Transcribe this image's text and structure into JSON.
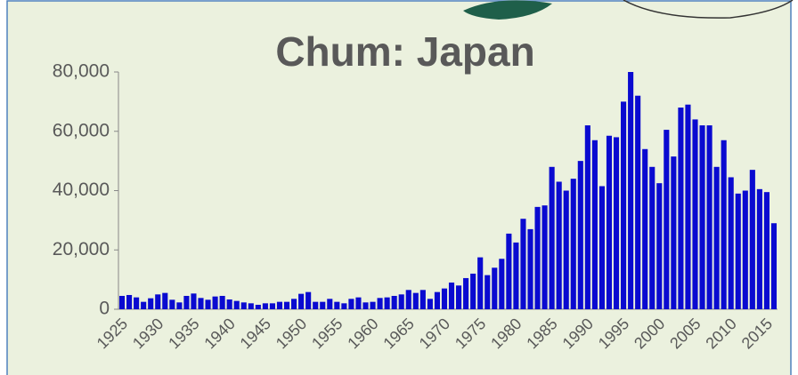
{
  "chart_data": {
    "type": "bar",
    "title": "Chum: Japan",
    "categories": [
      "1925",
      null,
      null,
      null,
      null,
      "1930",
      null,
      null,
      null,
      null,
      "1935",
      null,
      null,
      null,
      null,
      "1940",
      null,
      null,
      null,
      null,
      "1945",
      null,
      null,
      null,
      null,
      "1950",
      null,
      null,
      null,
      null,
      "1955",
      null,
      null,
      null,
      null,
      "1960",
      null,
      null,
      null,
      null,
      "1965",
      null,
      null,
      null,
      null,
      "1970",
      null,
      null,
      null,
      null,
      "1975",
      null,
      null,
      null,
      null,
      "1980",
      null,
      null,
      null,
      null,
      "1985",
      null,
      null,
      null,
      null,
      "1990",
      null,
      null,
      null,
      null,
      "1995",
      null,
      null,
      null,
      null,
      "2000",
      null,
      null,
      null,
      null,
      "2005",
      null,
      null,
      null,
      null,
      "2010",
      null,
      null,
      null,
      null,
      "2015",
      null
    ],
    "values": [
      4500,
      4800,
      4000,
      2500,
      3700,
      5000,
      5500,
      3200,
      2300,
      4500,
      5300,
      3800,
      3200,
      4300,
      4500,
      3300,
      2800,
      2300,
      2000,
      1500,
      2000,
      2000,
      2500,
      2500,
      3500,
      5200,
      5800,
      2500,
      2500,
      3500,
      2500,
      2000,
      3500,
      4000,
      2300,
      2500,
      3800,
      4000,
      4500,
      5000,
      6500,
      5500,
      6500,
      3500,
      5800,
      7000,
      9000,
      8000,
      10500,
      12000,
      17500,
      11500,
      14000,
      17000,
      25500,
      22500,
      30500,
      27000,
      34500,
      35000,
      48000,
      43000,
      40000,
      44000,
      50000,
      62000,
      57000,
      41500,
      58500,
      58000,
      70000,
      80000,
      72000,
      54000,
      48000,
      42500,
      60500,
      51500,
      68000,
      69000,
      64000,
      62000,
      62000,
      48000,
      57000,
      44500,
      39000,
      40000,
      47000,
      40500,
      39500,
      29000
    ],
    "color": "#0a0ad0",
    "ylim": [
      0,
      80000
    ],
    "yticks": [
      0,
      {
        "value": 20000,
        "label": "20,000"
      },
      {
        "value": 40000,
        "label": "40,000"
      },
      {
        "value": 60000,
        "label": "60,000"
      },
      {
        "value": 80000,
        "label": "80,000"
      }
    ],
    "grid": false
  }
}
